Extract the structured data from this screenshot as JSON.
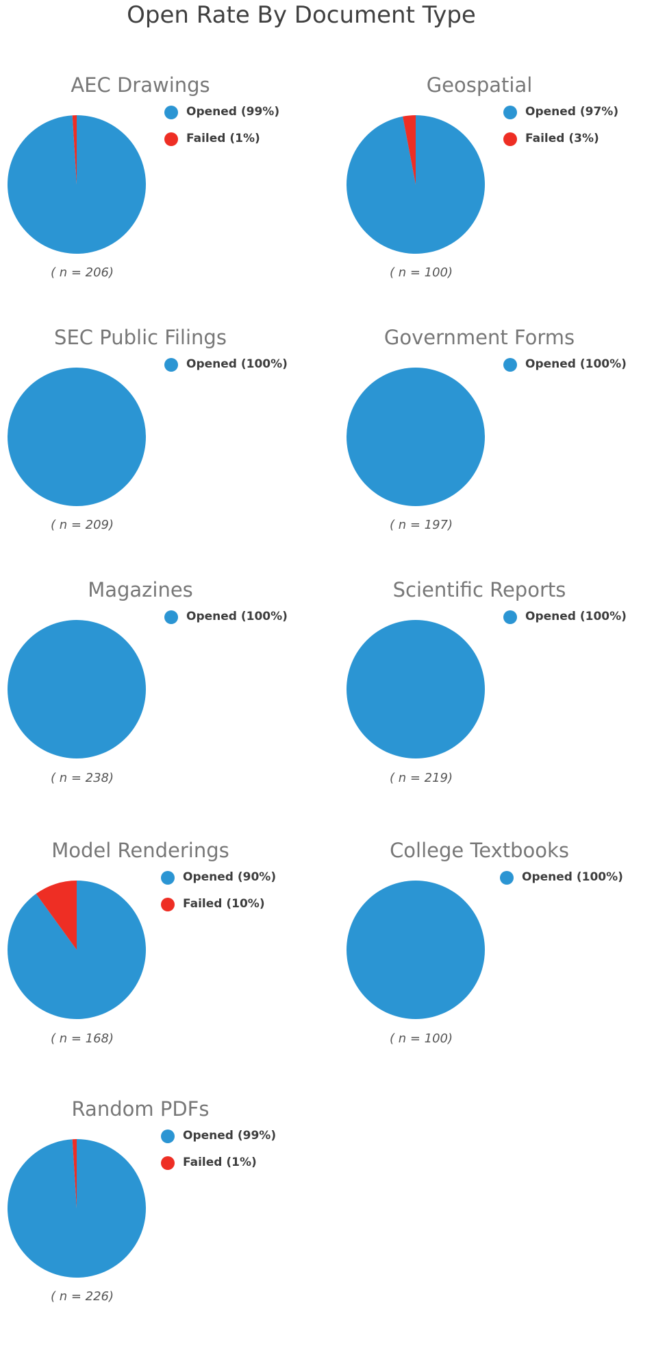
{
  "title": "Open Rate By Document Type",
  "colors": {
    "opened": "#2b95d3",
    "failed": "#ee2e24"
  },
  "chart_data": [
    {
      "type": "pie",
      "title": "AEC Drawings",
      "slices": [
        {
          "name": "Opened",
          "value": 99,
          "label": "Opened (99%)"
        },
        {
          "name": "Failed",
          "value": 1,
          "label": "Failed (1%)"
        }
      ],
      "n_label": "( n = 206)",
      "legend": "right"
    },
    {
      "type": "pie",
      "title": "Geospatial",
      "slices": [
        {
          "name": "Opened",
          "value": 97,
          "label": "Opened (97%)"
        },
        {
          "name": "Failed",
          "value": 3,
          "label": "Failed (3%)"
        }
      ],
      "n_label": "( n = 100)",
      "legend": "right"
    },
    {
      "type": "pie",
      "title": "SEC Public Filings",
      "slices": [
        {
          "name": "Opened",
          "value": 100,
          "label": "Opened (100%)"
        }
      ],
      "n_label": "( n = 209)",
      "legend": "right"
    },
    {
      "type": "pie",
      "title": "Government Forms",
      "slices": [
        {
          "name": "Opened",
          "value": 100,
          "label": "Opened (100%)"
        }
      ],
      "n_label": "( n = 197)",
      "legend": "right"
    },
    {
      "type": "pie",
      "title": "Magazines",
      "slices": [
        {
          "name": "Opened",
          "value": 100,
          "label": "Opened (100%)"
        }
      ],
      "n_label": "( n = 238)",
      "legend": "right"
    },
    {
      "type": "pie",
      "title": "Scientific Reports",
      "slices": [
        {
          "name": "Opened",
          "value": 100,
          "label": "Opened (100%)"
        }
      ],
      "n_label": "( n = 219)",
      "legend": "right"
    },
    {
      "type": "pie",
      "title": "Model Renderings",
      "slices": [
        {
          "name": "Opened",
          "value": 90,
          "label": "Opened (90%)"
        },
        {
          "name": "Failed",
          "value": 10,
          "label": "Failed (10%)"
        }
      ],
      "n_label": "( n = 168)",
      "legend": "right"
    },
    {
      "type": "pie",
      "title": "College Textbooks",
      "slices": [
        {
          "name": "Opened",
          "value": 100,
          "label": "Opened (100%)"
        }
      ],
      "n_label": "( n = 100)",
      "legend": "right"
    },
    {
      "type": "pie",
      "title": "Random PDFs",
      "slices": [
        {
          "name": "Opened",
          "value": 99,
          "label": "Opened (99%)"
        },
        {
          "name": "Failed",
          "value": 1,
          "label": "Failed (1%)"
        }
      ],
      "n_label": "( n = 226)",
      "legend": "right"
    }
  ]
}
